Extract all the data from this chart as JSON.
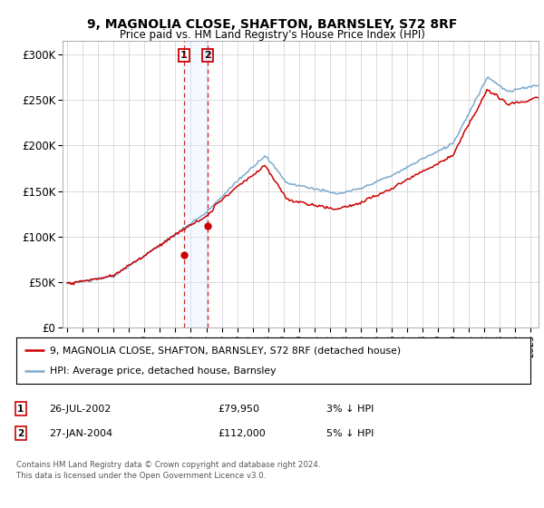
{
  "title": "9, MAGNOLIA CLOSE, SHAFTON, BARNSLEY, S72 8RF",
  "subtitle": "Price paid vs. HM Land Registry's House Price Index (HPI)",
  "ylabel_ticks": [
    "£0",
    "£50K",
    "£100K",
    "£150K",
    "£200K",
    "£250K",
    "£300K"
  ],
  "ytick_vals": [
    0,
    50000,
    100000,
    150000,
    200000,
    250000,
    300000
  ],
  "ylim": [
    0,
    315000
  ],
  "xlim_start": 1994.7,
  "xlim_end": 2025.5,
  "sale1_date": 2002.56,
  "sale1_price": 79950,
  "sale2_date": 2004.08,
  "sale2_price": 112000,
  "red_line_color": "#cc0000",
  "blue_line_color": "#7faacc",
  "legend_label1": "9, MAGNOLIA CLOSE, SHAFTON, BARNSLEY, S72 8RF (detached house)",
  "legend_label2": "HPI: Average price, detached house, Barnsley",
  "table_row1": [
    "1",
    "26-JUL-2002",
    "£79,950",
    "3% ↓ HPI"
  ],
  "table_row2": [
    "2",
    "27-JAN-2004",
    "£112,000",
    "5% ↓ HPI"
  ],
  "footnote": "Contains HM Land Registry data © Crown copyright and database right 2024.\nThis data is licensed under the Open Government Licence v3.0.",
  "background_color": "#ffffff",
  "grid_color": "#cccccc",
  "highlight_box_color": "#ddeeff",
  "highlight_alpha": 0.35
}
